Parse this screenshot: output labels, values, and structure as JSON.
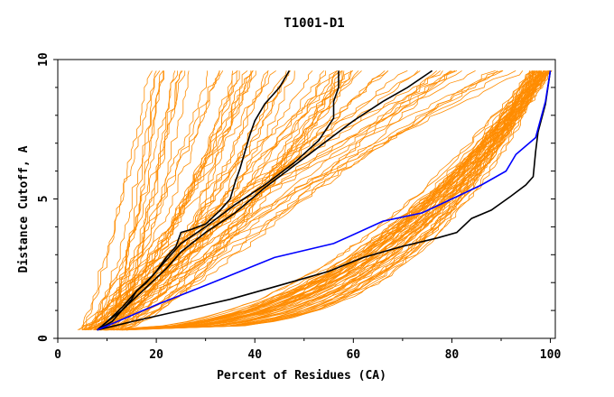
{
  "chart_data": {
    "type": "line",
    "title": "T1001-D1",
    "xlabel": "Percent of Residues (CA)",
    "ylabel": "Distance Cutoff, A",
    "xlim": [
      0,
      101
    ],
    "ylim": [
      0,
      10
    ],
    "xticks": [
      0,
      20,
      40,
      60,
      80,
      100
    ],
    "yticks": [
      0,
      5,
      10
    ],
    "grid": false,
    "colors": {
      "background_models": "#ff8c00",
      "highlight_black": "#000000",
      "highlight_blue": "#0000ff"
    },
    "highlight_series": [
      {
        "color": "#000000",
        "x": [
          8,
          11,
          13,
          15,
          16,
          18,
          20,
          22,
          24,
          25,
          27,
          30,
          33,
          35,
          36,
          37,
          38,
          39,
          40,
          42,
          45,
          47
        ],
        "y": [
          0.3,
          0.6,
          1.0,
          1.4,
          1.7,
          2.0,
          2.4,
          2.9,
          3.3,
          3.8,
          3.9,
          4.1,
          4.6,
          5.0,
          5.6,
          6.1,
          6.7,
          7.3,
          7.8,
          8.4,
          9.0,
          9.6
        ]
      },
      {
        "color": "#000000",
        "x": [
          8,
          10,
          13,
          16,
          19,
          22,
          25,
          30,
          36,
          42,
          48,
          53,
          56,
          56,
          57,
          57
        ],
        "y": [
          0.3,
          0.6,
          1.1,
          1.7,
          2.2,
          2.8,
          3.4,
          4.0,
          4.8,
          5.5,
          6.3,
          7.1,
          7.9,
          8.5,
          9.0,
          9.6
        ]
      },
      {
        "color": "#000000",
        "x": [
          8,
          10,
          13,
          16,
          19,
          22,
          25,
          30,
          36,
          42,
          48,
          54,
          60,
          66,
          71,
          76
        ],
        "y": [
          0.3,
          0.6,
          1.0,
          1.5,
          2.0,
          2.5,
          3.1,
          3.8,
          4.5,
          5.4,
          6.2,
          7.0,
          7.8,
          8.5,
          9.0,
          9.6
        ]
      },
      {
        "color": "#000000",
        "x": [
          8,
          15,
          25,
          35,
          45,
          55,
          62,
          70,
          77,
          81,
          84,
          88,
          92,
          95,
          96.5,
          97,
          97.5,
          99,
          100
        ],
        "y": [
          0.3,
          0.6,
          1.0,
          1.4,
          1.9,
          2.4,
          2.9,
          3.3,
          3.6,
          3.8,
          4.3,
          4.6,
          5.1,
          5.5,
          5.8,
          6.7,
          7.4,
          8.4,
          9.6
        ]
      },
      {
        "color": "#0000ff",
        "x": [
          8,
          12,
          20,
          30,
          44,
          56,
          66,
          74,
          80,
          86,
          91,
          93,
          97,
          99,
          100
        ],
        "y": [
          0.3,
          0.6,
          1.2,
          1.9,
          2.9,
          3.4,
          4.2,
          4.5,
          5.0,
          5.5,
          6.0,
          6.6,
          7.2,
          8.5,
          9.6
        ]
      }
    ]
  }
}
